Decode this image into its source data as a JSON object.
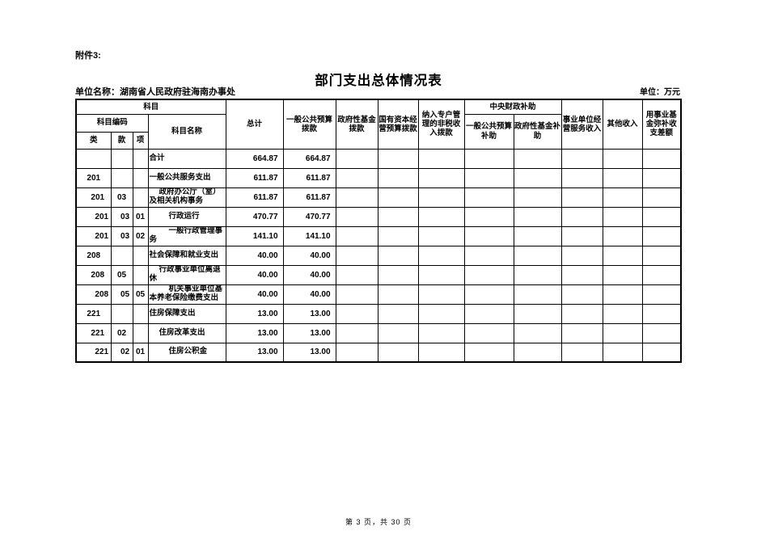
{
  "page": {
    "attachment_label": "附件3:",
    "title": "部门支出总体情况表",
    "unit_name_label": "单位名称：湖南省人民政府驻海南办事处",
    "unit_label": "单位：万元",
    "footer": "第 3 页，共 30 页"
  },
  "table": {
    "header": {
      "subject": "科目",
      "subject_code": "科目编码",
      "subject_name": "科目名称",
      "code_class": "类",
      "code_section": "款",
      "code_item": "项",
      "total": "总计",
      "general_public_budget": "一般公共预算拨款",
      "government_fund": "政府性基金拨款",
      "state_capital": "国有资本经营预算拨款",
      "special_account": "纳入专户管理的非税收入拨款",
      "central_subsidy": "中央财政补助",
      "central_general_subsidy": "一般公共预算补助",
      "central_fund_subsidy": "政府性基金补助",
      "business_income": "事业单位经营服务收入",
      "other_income": "其他收入",
      "fund_balance": "用事业基金弥补收支差额"
    },
    "rows": [
      {
        "lei": "",
        "kuan": "",
        "xiang": "",
        "name": "合计",
        "total": "664.87",
        "general": "664.87",
        "level": 1
      },
      {
        "lei": "201",
        "kuan": "",
        "xiang": "",
        "name": "一般公共服务支出",
        "total": "611.87",
        "general": "611.87",
        "level": 1
      },
      {
        "lei": "201",
        "kuan": "03",
        "xiang": "",
        "name": "政府办公厅（室）及相关机构事务",
        "total": "611.87",
        "general": "611.87",
        "level": 2
      },
      {
        "lei": "201",
        "kuan": "03",
        "xiang": "01",
        "name": "行政运行",
        "total": "470.77",
        "general": "470.77",
        "level": 3
      },
      {
        "lei": "201",
        "kuan": "03",
        "xiang": "02",
        "name": "一般行政管理事务",
        "total": "141.10",
        "general": "141.10",
        "level": 3
      },
      {
        "lei": "208",
        "kuan": "",
        "xiang": "",
        "name": "社会保障和就业支出",
        "total": "40.00",
        "general": "40.00",
        "level": 1
      },
      {
        "lei": "208",
        "kuan": "05",
        "xiang": "",
        "name": "行政事业单位离退休",
        "total": "40.00",
        "general": "40.00",
        "level": 2
      },
      {
        "lei": "208",
        "kuan": "05",
        "xiang": "05",
        "name": "机关事业单位基本养老保险缴费支出",
        "total": "40.00",
        "general": "40.00",
        "level": 3
      },
      {
        "lei": "221",
        "kuan": "",
        "xiang": "",
        "name": "住房保障支出",
        "total": "13.00",
        "general": "13.00",
        "level": 1
      },
      {
        "lei": "221",
        "kuan": "02",
        "xiang": "",
        "name": "住房改革支出",
        "total": "13.00",
        "general": "13.00",
        "level": 2
      },
      {
        "lei": "221",
        "kuan": "02",
        "xiang": "01",
        "name": "住房公积金",
        "total": "13.00",
        "general": "13.00",
        "level": 3
      }
    ]
  }
}
